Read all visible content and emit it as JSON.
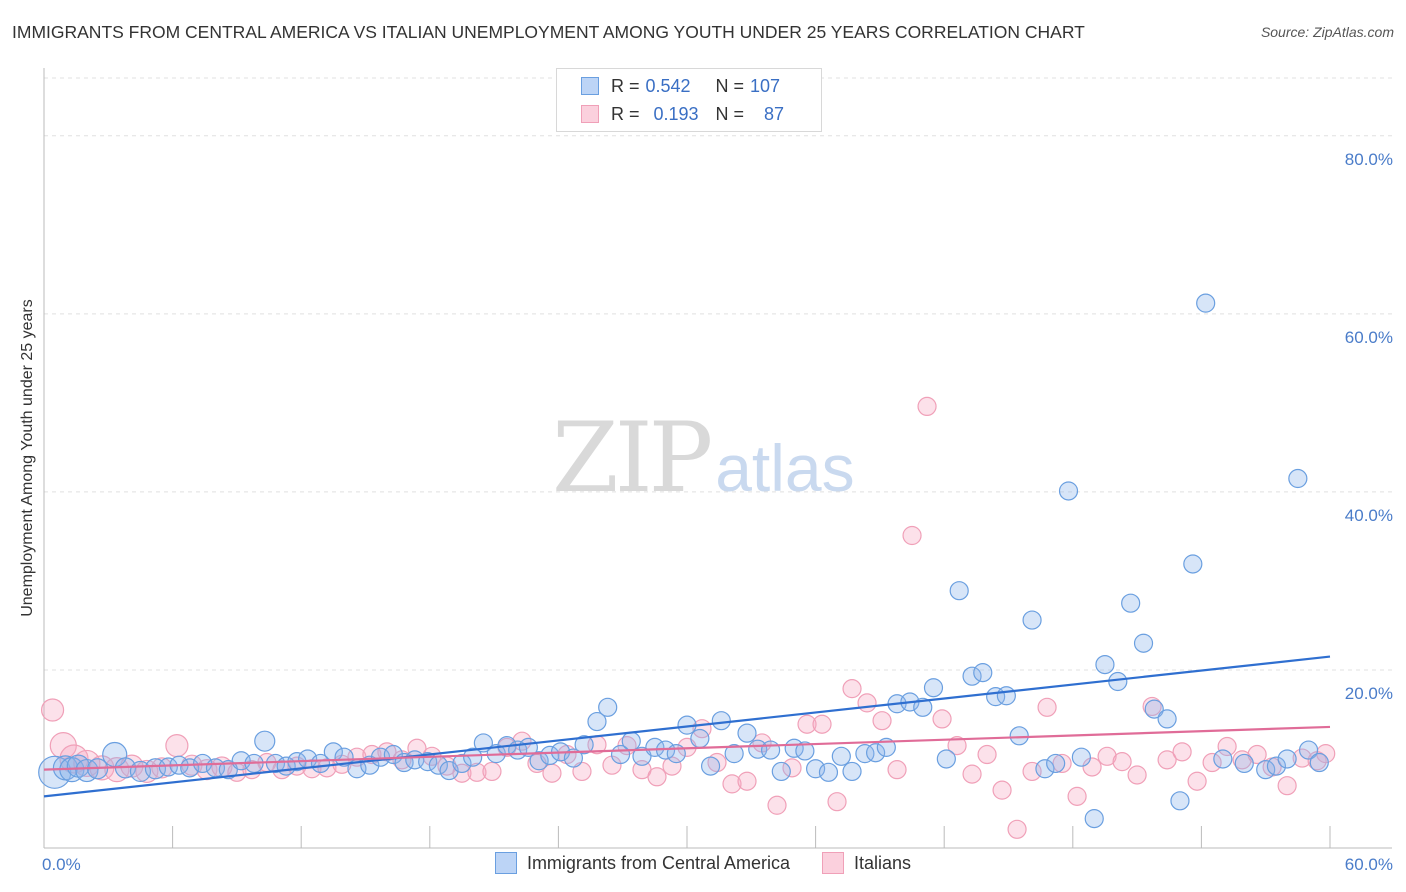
{
  "title": "IMMIGRANTS FROM CENTRAL AMERICA VS ITALIAN UNEMPLOYMENT AMONG YOUTH UNDER 25 YEARS CORRELATION CHART",
  "source": "Source: ZipAtlas.com",
  "watermark": {
    "zip": "ZIP",
    "atlas": "atlas"
  },
  "legend": {
    "row1": {
      "r_label": "R = ",
      "r_value": "0.542",
      "n_label": "N = ",
      "n_value": "107"
    },
    "row2": {
      "r_label": "R = ",
      "r_value": "0.193",
      "n_label": "N = ",
      "n_value": "87"
    }
  },
  "colors": {
    "blue": "#6a9fe0",
    "blue_line": "#2f6fd0",
    "pink": "#f0a0b8",
    "pink_line": "#e06c98",
    "tick": "#4a7cc9"
  },
  "chart_data": {
    "type": "scatter",
    "xlabel": "",
    "ylabel": "Unemployment Among Youth under 25 years",
    "xlim": [
      0,
      60
    ],
    "ylim": [
      0,
      80
    ],
    "y_ticks": [
      "20.0%",
      "40.0%",
      "60.0%",
      "80.0%"
    ],
    "x_tick_labels": [
      "0.0%",
      "60.0%"
    ],
    "grid": true,
    "legend_position": "bottom-center",
    "series": [
      {
        "name": "Immigrants from Central America",
        "color": "#6a9fe0",
        "trend": {
          "x": [
            0,
            60
          ],
          "y": [
            5.8,
            21.5
          ]
        },
        "points": [
          [
            0.5,
            8.5,
            16
          ],
          [
            1.0,
            9.0,
            12
          ],
          [
            1.3,
            8.8,
            12
          ],
          [
            1.6,
            9.2,
            11
          ],
          [
            2.0,
            8.7,
            11
          ],
          [
            2.5,
            8.9,
            10
          ],
          [
            3.3,
            10.5,
            12
          ],
          [
            3.8,
            9.0,
            10
          ],
          [
            4.5,
            8.6,
            10
          ],
          [
            5.2,
            8.9,
            10
          ],
          [
            5.8,
            9.1,
            9
          ],
          [
            6.3,
            9.3,
            9
          ],
          [
            6.8,
            9.0,
            9
          ],
          [
            7.4,
            9.5,
            9
          ],
          [
            8.0,
            9.0,
            9
          ],
          [
            8.6,
            8.8,
            9
          ],
          [
            9.2,
            9.8,
            9
          ],
          [
            9.8,
            9.5,
            9
          ],
          [
            10.3,
            12.0,
            10
          ],
          [
            10.8,
            9.5,
            9
          ],
          [
            11.3,
            9.2,
            9
          ],
          [
            11.8,
            9.7,
            9
          ],
          [
            12.3,
            10.0,
            9
          ],
          [
            12.9,
            9.5,
            9
          ],
          [
            13.5,
            10.8,
            9
          ],
          [
            14.0,
            10.2,
            9
          ],
          [
            14.6,
            8.9,
            9
          ],
          [
            15.2,
            9.3,
            9
          ],
          [
            15.7,
            10.2,
            9
          ],
          [
            16.3,
            10.5,
            9
          ],
          [
            16.8,
            9.6,
            9
          ],
          [
            17.3,
            9.9,
            9
          ],
          [
            17.9,
            9.7,
            9
          ],
          [
            18.4,
            9.3,
            9
          ],
          [
            18.9,
            8.7,
            9
          ],
          [
            19.5,
            9.5,
            9
          ],
          [
            20.0,
            10.2,
            9
          ],
          [
            20.5,
            11.8,
            9
          ],
          [
            21.1,
            10.6,
            9
          ],
          [
            21.6,
            11.5,
            9
          ],
          [
            22.1,
            11.0,
            9
          ],
          [
            22.6,
            11.3,
            9
          ],
          [
            23.1,
            9.8,
            9
          ],
          [
            23.6,
            10.4,
            9
          ],
          [
            24.1,
            10.8,
            9
          ],
          [
            24.7,
            10.1,
            9
          ],
          [
            25.2,
            11.6,
            9
          ],
          [
            25.8,
            14.2,
            9
          ],
          [
            26.3,
            15.8,
            9
          ],
          [
            26.9,
            10.5,
            9
          ],
          [
            27.4,
            12.0,
            9
          ],
          [
            27.9,
            10.3,
            9
          ],
          [
            28.5,
            11.3,
            9
          ],
          [
            29.0,
            11.0,
            9
          ],
          [
            29.5,
            10.6,
            9
          ],
          [
            30.0,
            13.8,
            9
          ],
          [
            30.6,
            12.3,
            9
          ],
          [
            31.1,
            9.2,
            9
          ],
          [
            31.6,
            14.3,
            9
          ],
          [
            32.2,
            10.6,
            9
          ],
          [
            32.8,
            12.9,
            9
          ],
          [
            33.3,
            11.1,
            9
          ],
          [
            33.9,
            11.0,
            9
          ],
          [
            34.4,
            8.6,
            9
          ],
          [
            35.0,
            11.2,
            9
          ],
          [
            35.5,
            10.9,
            9
          ],
          [
            36.0,
            8.9,
            9
          ],
          [
            36.6,
            8.5,
            9
          ],
          [
            37.2,
            10.3,
            9
          ],
          [
            37.7,
            8.6,
            9
          ],
          [
            38.3,
            10.6,
            9
          ],
          [
            38.8,
            10.7,
            9
          ],
          [
            39.3,
            11.3,
            9
          ],
          [
            39.8,
            16.2,
            9
          ],
          [
            40.4,
            16.4,
            9
          ],
          [
            41.0,
            15.8,
            9
          ],
          [
            41.5,
            18.0,
            9
          ],
          [
            42.1,
            10.0,
            9
          ],
          [
            42.7,
            28.9,
            9
          ],
          [
            43.3,
            19.3,
            9
          ],
          [
            43.8,
            19.7,
            9
          ],
          [
            44.4,
            17.0,
            9
          ],
          [
            44.9,
            17.1,
            9
          ],
          [
            45.5,
            12.6,
            9
          ],
          [
            46.1,
            25.6,
            9
          ],
          [
            46.7,
            8.9,
            9
          ],
          [
            47.2,
            9.5,
            9
          ],
          [
            47.8,
            40.1,
            9
          ],
          [
            48.4,
            10.2,
            9
          ],
          [
            49.0,
            3.3,
            9
          ],
          [
            49.5,
            20.6,
            9
          ],
          [
            50.1,
            18.7,
            9
          ],
          [
            50.7,
            27.5,
            9
          ],
          [
            51.3,
            23.0,
            9
          ],
          [
            51.8,
            15.6,
            9
          ],
          [
            52.4,
            14.5,
            9
          ],
          [
            53.0,
            5.3,
            9
          ],
          [
            53.6,
            31.9,
            9
          ],
          [
            54.2,
            61.2,
            9
          ],
          [
            58.5,
            41.5,
            9
          ],
          [
            55.0,
            10.0,
            9
          ],
          [
            56.0,
            9.5,
            9
          ],
          [
            57.0,
            8.8,
            9
          ],
          [
            57.5,
            9.2,
            9
          ],
          [
            58.0,
            10.0,
            9
          ],
          [
            59.0,
            11.0,
            9
          ],
          [
            59.5,
            9.6,
            9
          ]
        ]
      },
      {
        "name": "Italians",
        "color": "#f0a0b8",
        "trend": {
          "x": [
            0,
            60
          ],
          "y": [
            8.8,
            13.6
          ]
        },
        "points": [
          [
            0.4,
            15.5,
            11
          ],
          [
            0.9,
            11.5,
            13
          ],
          [
            1.4,
            10.0,
            14
          ],
          [
            2.0,
            9.5,
            13
          ],
          [
            2.7,
            9.0,
            12
          ],
          [
            3.4,
            8.8,
            12
          ],
          [
            4.1,
            9.2,
            11
          ],
          [
            4.8,
            8.6,
            11
          ],
          [
            5.5,
            9.0,
            10
          ],
          [
            6.2,
            11.5,
            11
          ],
          [
            6.9,
            9.3,
            10
          ],
          [
            7.6,
            8.8,
            10
          ],
          [
            8.3,
            9.1,
            10
          ],
          [
            9.0,
            8.5,
            9
          ],
          [
            9.7,
            8.8,
            9
          ],
          [
            10.4,
            9.6,
            9
          ],
          [
            11.1,
            8.8,
            9
          ],
          [
            11.8,
            9.2,
            9
          ],
          [
            12.5,
            8.9,
            9
          ],
          [
            13.2,
            9.0,
            9
          ],
          [
            13.9,
            9.4,
            9
          ],
          [
            14.6,
            10.2,
            9
          ],
          [
            15.3,
            10.5,
            9
          ],
          [
            16.0,
            10.8,
            9
          ],
          [
            16.7,
            9.9,
            9
          ],
          [
            17.4,
            11.2,
            9
          ],
          [
            18.1,
            10.3,
            9
          ],
          [
            18.8,
            9.2,
            9
          ],
          [
            19.5,
            8.4,
            9
          ],
          [
            20.2,
            8.5,
            9
          ],
          [
            20.9,
            8.6,
            9
          ],
          [
            21.6,
            11.3,
            9
          ],
          [
            22.3,
            12.0,
            9
          ],
          [
            23.0,
            9.5,
            9
          ],
          [
            23.7,
            8.4,
            9
          ],
          [
            24.4,
            10.5,
            9
          ],
          [
            25.1,
            8.6,
            9
          ],
          [
            25.8,
            11.6,
            9
          ],
          [
            26.5,
            9.3,
            9
          ],
          [
            27.2,
            11.5,
            9
          ],
          [
            27.9,
            8.8,
            9
          ],
          [
            28.6,
            8.0,
            9
          ],
          [
            29.3,
            9.2,
            9
          ],
          [
            30.0,
            11.3,
            9
          ],
          [
            30.7,
            13.4,
            9
          ],
          [
            31.4,
            9.6,
            9
          ],
          [
            32.1,
            7.2,
            9
          ],
          [
            32.8,
            7.5,
            9
          ],
          [
            33.5,
            11.8,
            9
          ],
          [
            34.2,
            4.8,
            9
          ],
          [
            34.9,
            9.0,
            9
          ],
          [
            35.6,
            13.9,
            9
          ],
          [
            36.3,
            13.9,
            9
          ],
          [
            37.0,
            5.2,
            9
          ],
          [
            37.7,
            17.9,
            9
          ],
          [
            38.4,
            16.3,
            9
          ],
          [
            39.1,
            14.3,
            9
          ],
          [
            39.8,
            8.8,
            9
          ],
          [
            40.5,
            35.1,
            9
          ],
          [
            41.2,
            49.6,
            9
          ],
          [
            41.9,
            14.5,
            9
          ],
          [
            42.6,
            11.5,
            9
          ],
          [
            43.3,
            8.3,
            9
          ],
          [
            44.0,
            10.5,
            9
          ],
          [
            44.7,
            6.5,
            9
          ],
          [
            45.4,
            2.1,
            9
          ],
          [
            46.1,
            8.6,
            9
          ],
          [
            46.8,
            15.8,
            9
          ],
          [
            47.5,
            9.5,
            9
          ],
          [
            48.2,
            5.8,
            9
          ],
          [
            48.9,
            9.1,
            9
          ],
          [
            49.6,
            10.3,
            9
          ],
          [
            50.3,
            9.7,
            9
          ],
          [
            51.0,
            8.2,
            9
          ],
          [
            51.7,
            15.9,
            9
          ],
          [
            52.4,
            9.9,
            9
          ],
          [
            53.1,
            10.8,
            9
          ],
          [
            53.8,
            7.5,
            9
          ],
          [
            54.5,
            9.6,
            9
          ],
          [
            55.2,
            11.4,
            9
          ],
          [
            55.9,
            9.9,
            9
          ],
          [
            56.6,
            10.5,
            9
          ],
          [
            57.3,
            9.1,
            9
          ],
          [
            58.0,
            7.0,
            9
          ],
          [
            58.7,
            10.1,
            9
          ],
          [
            59.4,
            9.8,
            9
          ],
          [
            59.8,
            10.6,
            9
          ]
        ]
      }
    ]
  }
}
